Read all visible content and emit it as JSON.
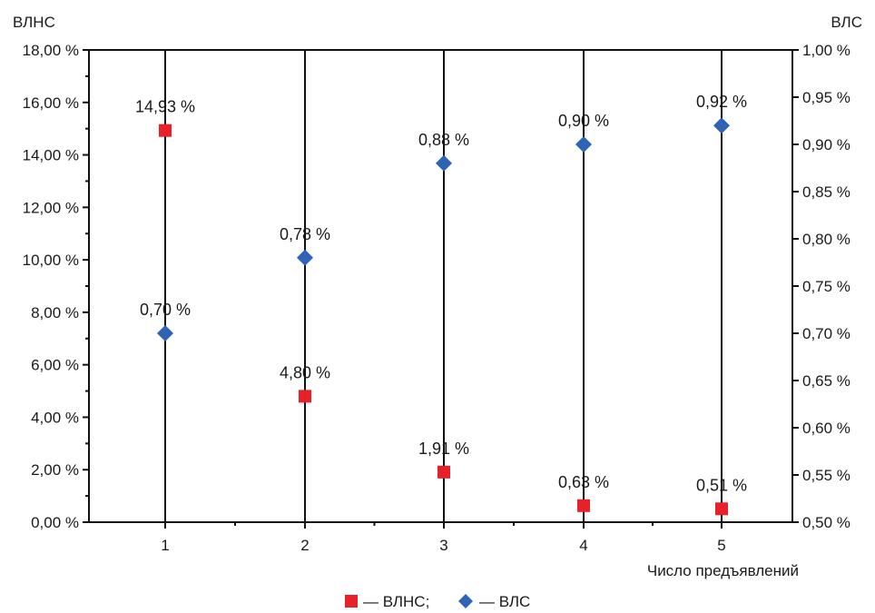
{
  "chart_data": {
    "type": "scatter",
    "title": "",
    "xlabel": "Число предъявлений",
    "categories": [
      "1",
      "2",
      "3",
      "4",
      "5"
    ],
    "y_left": {
      "label": "ВЛНС",
      "range": [
        0,
        18
      ],
      "ticks": [
        "0,00 %",
        "2,00 %",
        "4,00 %",
        "6,00 %",
        "8,00 %",
        "10,00 %",
        "12,00 %",
        "14,00 %",
        "16,00 %",
        "18,00 %"
      ]
    },
    "y_right": {
      "label": "ВЛС",
      "range": [
        0.5,
        1.0
      ],
      "ticks": [
        "0,50 %",
        "0,55 %",
        "0,60 %",
        "0,65 %",
        "0,70 %",
        "0,75 %",
        "0,80 %",
        "0,85 %",
        "0,90 %",
        "0,95 %",
        "1,00 %"
      ]
    },
    "series": [
      {
        "name": "ВЛНС",
        "axis": "left",
        "marker": "square",
        "color": "#e8202a",
        "values": [
          14.93,
          4.8,
          1.91,
          0.63,
          0.51
        ],
        "labels": [
          "14,93 %",
          "4,80 %",
          "1,91 %",
          "0,63 %",
          "0,51 %"
        ]
      },
      {
        "name": "ВЛС",
        "axis": "right",
        "marker": "diamond",
        "color": "#2e63b5",
        "values": [
          0.7,
          0.78,
          0.88,
          0.9,
          0.92
        ],
        "labels": [
          "0,70 %",
          "0,78 %",
          "0,88 %",
          "0,90 %",
          "0,92 %"
        ]
      }
    ],
    "legend": {
      "position": "bottom-center",
      "items": [
        {
          "text": "— ВЛНС;",
          "marker": "square",
          "color": "#e8202a"
        },
        {
          "text": "— ВЛС",
          "marker": "diamond",
          "color": "#2e63b5"
        }
      ]
    },
    "grid": false
  }
}
